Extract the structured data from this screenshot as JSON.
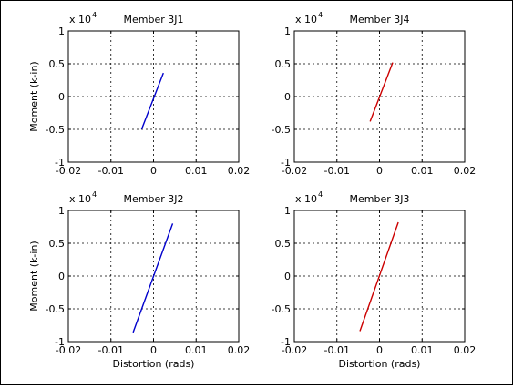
{
  "chart_data": [
    {
      "type": "line",
      "title": "Member 3J1",
      "multiplier_base": "x 10",
      "multiplier_exp": "4",
      "xlabel": "",
      "ylabel": "Moment (k-in)",
      "xlim": [
        -0.02,
        0.02
      ],
      "ylim": [
        -1,
        1
      ],
      "xticks": [
        -0.02,
        -0.01,
        0,
        0.01,
        0.02
      ],
      "xtick_labels": [
        "-0.02",
        "-0.01",
        "0",
        "0.01",
        "0.02"
      ],
      "yticks": [
        1,
        0.5,
        0,
        -0.5,
        -1
      ],
      "ytick_labels": [
        "1",
        "0.5",
        "0",
        "-0.5",
        "-1"
      ],
      "grid": true,
      "series": [
        {
          "color": "#0000cc",
          "x": [
            -0.0028,
            0.0023
          ],
          "y": [
            -0.5,
            0.36
          ]
        }
      ]
    },
    {
      "type": "line",
      "title": "Member 3J4",
      "multiplier_base": "x 10",
      "multiplier_exp": "4",
      "xlabel": "",
      "ylabel": "",
      "xlim": [
        -0.02,
        0.02
      ],
      "ylim": [
        -1,
        1
      ],
      "xticks": [
        -0.02,
        -0.01,
        0,
        0.01,
        0.02
      ],
      "xtick_labels": [
        "-0.02",
        "-0.01",
        "0",
        "0.01",
        "0.02"
      ],
      "yticks": [
        1,
        0.5,
        0,
        -0.5,
        -1
      ],
      "ytick_labels": [
        "1",
        "0.5",
        "0",
        "-0.5",
        "-1"
      ],
      "grid": true,
      "series": [
        {
          "color": "#cc0000",
          "x": [
            -0.0022,
            0.0031
          ],
          "y": [
            -0.38,
            0.52
          ]
        }
      ]
    },
    {
      "type": "line",
      "title": "Member 3J2",
      "multiplier_base": "x 10",
      "multiplier_exp": "4",
      "xlabel": "Distortion (rads)",
      "ylabel": "Moment (k-in)",
      "xlim": [
        -0.02,
        0.02
      ],
      "ylim": [
        -1,
        1
      ],
      "xticks": [
        -0.02,
        -0.01,
        0,
        0.01,
        0.02
      ],
      "xtick_labels": [
        "-0.02",
        "-0.01",
        "0",
        "0.01",
        "0.02"
      ],
      "yticks": [
        1,
        0.5,
        0,
        -0.5,
        -1
      ],
      "ytick_labels": [
        "1",
        "0.5",
        "0",
        "-0.5",
        "-1"
      ],
      "grid": true,
      "series": [
        {
          "color": "#0000cc",
          "x": [
            -0.0048,
            0.0045
          ],
          "y": [
            -0.86,
            0.8
          ]
        }
      ]
    },
    {
      "type": "line",
      "title": "Member 3J3",
      "multiplier_base": "x 10",
      "multiplier_exp": "4",
      "xlabel": "Distortion (rads)",
      "ylabel": "",
      "xlim": [
        -0.02,
        0.02
      ],
      "ylim": [
        -1,
        1
      ],
      "xticks": [
        -0.02,
        -0.01,
        0,
        0.01,
        0.02
      ],
      "xtick_labels": [
        "-0.02",
        "-0.01",
        "0",
        "0.01",
        "0.02"
      ],
      "yticks": [
        1,
        0.5,
        0,
        -0.5,
        -1
      ],
      "ytick_labels": [
        "1",
        "0.5",
        "0",
        "-0.5",
        "-1"
      ],
      "grid": true,
      "series": [
        {
          "color": "#cc0000",
          "x": [
            -0.0046,
            0.0044
          ],
          "y": [
            -0.84,
            0.82
          ]
        }
      ]
    }
  ]
}
